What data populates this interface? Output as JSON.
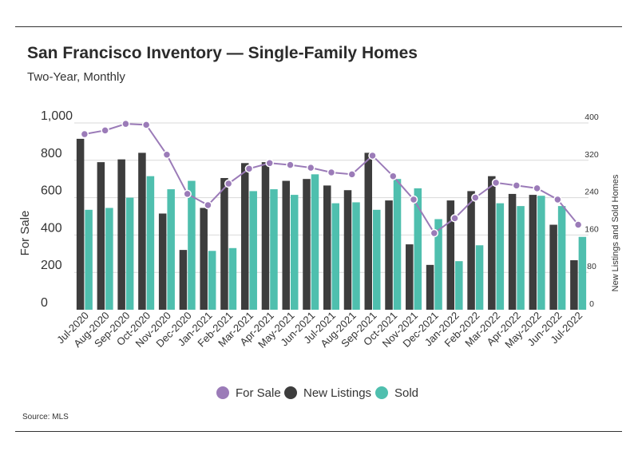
{
  "header": {
    "title": "San Francisco Inventory — Single-Family Homes",
    "subtitle": "Two-Year, Monthly"
  },
  "footer": {
    "source": "Source:  MLS"
  },
  "colors": {
    "for_sale": "#9b7bb8",
    "new_listings": "#3d3d3d",
    "sold": "#4fbfae",
    "gridline": "#d9d9d9"
  },
  "chart_data": {
    "type": "bar",
    "title": "San Francisco Inventory — Single-Family Homes",
    "subtitle": "Two-Year, Monthly",
    "categories": [
      "Jul-2020",
      "Aug-2020",
      "Sep-2020",
      "Oct-2020",
      "Nov-2020",
      "Dec-2020",
      "Jan-2021",
      "Feb-2021",
      "Mar-2021",
      "Apr-2021",
      "May-2021",
      "Jun-2021",
      "Jul-2021",
      "Aug-2021",
      "Sep-2021",
      "Oct-2021",
      "Nov-2021",
      "Dec-2021",
      "Jan-2022",
      "Feb-2022",
      "Mar-2022",
      "Apr-2022",
      "May-2022",
      "Jun-2022",
      "Jul-2022"
    ],
    "ylabel_left": "For Sale",
    "ylabel_right": "New Listings and Sold Homes",
    "ylim_left": [
      0,
      1000
    ],
    "ylim_right": [
      0,
      400
    ],
    "yticks_left": [
      "0",
      "200",
      "400",
      "600",
      "800",
      "1,000"
    ],
    "yticks_right": [
      "0",
      "80",
      "160",
      "240",
      "320",
      "400"
    ],
    "grid": true,
    "legend_position": "bottom",
    "series": [
      {
        "name": "For Sale",
        "chart": "line",
        "axis": "left",
        "values": [
          940,
          960,
          995,
          990,
          830,
          620,
          560,
          675,
          755,
          785,
          775,
          760,
          735,
          725,
          825,
          715,
          590,
          410,
          490,
          600,
          680,
          665,
          650,
          590,
          455
        ]
      },
      {
        "name": "New Listings",
        "chart": "bar",
        "axis": "right",
        "values": [
          366,
          316,
          322,
          336,
          206,
          128,
          218,
          282,
          314,
          316,
          276,
          280,
          266,
          256,
          336,
          234,
          140,
          96,
          234,
          254,
          286,
          248,
          246,
          182,
          106
        ]
      },
      {
        "name": "Sold",
        "chart": "bar",
        "axis": "right",
        "values": [
          214,
          218,
          240,
          286,
          258,
          276,
          126,
          132,
          254,
          258,
          246,
          290,
          228,
          230,
          214,
          280,
          260,
          194,
          104,
          138,
          228,
          222,
          244,
          222,
          156
        ]
      }
    ]
  }
}
